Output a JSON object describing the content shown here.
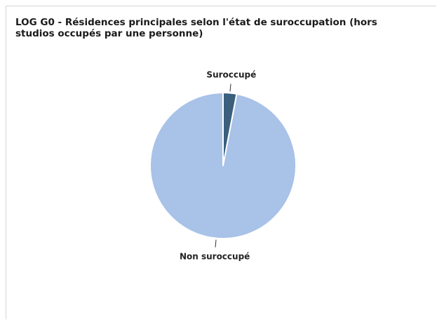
{
  "chart_data": {
    "type": "pie",
    "title": "LOG G0 - Résidences principales selon l'état de suroccupation (hors studios occupés par une personne)",
    "slices": [
      {
        "label": "Suroccupé",
        "value": 3,
        "color": "#3b5f7d"
      },
      {
        "label": "Non suroccupé",
        "value": 97,
        "color": "#a8c2e8"
      }
    ],
    "start": "12 o'clock",
    "direction": "clockwise",
    "legend": "none",
    "labels": "outside with leader lines"
  }
}
